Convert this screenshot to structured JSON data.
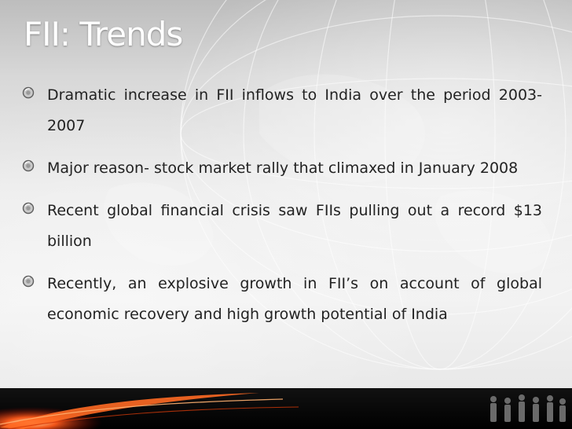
{
  "slide": {
    "title": "FII: Trends",
    "bullets": [
      {
        "text": "Dramatic increase in FII inflows to India over the period 2003-2007"
      },
      {
        "text": "Major reason- stock market rally that climaxed in January 2008"
      },
      {
        "text": "Recent global financial crisis saw FIIs pulling out a record $13 billion"
      },
      {
        "text": "Recently, an explosive growth in FII’s on account of global economic recovery and high growth potential of India"
      }
    ]
  },
  "icons": {
    "bullet": "round-bullet-icon",
    "background": "globe-graphic",
    "footer": "business-people-silhouette-icon"
  },
  "colors": {
    "title": "#ffffff",
    "body_text": "#222222",
    "footer_band": "#000000",
    "accent_glow": "#ff5a1a"
  }
}
